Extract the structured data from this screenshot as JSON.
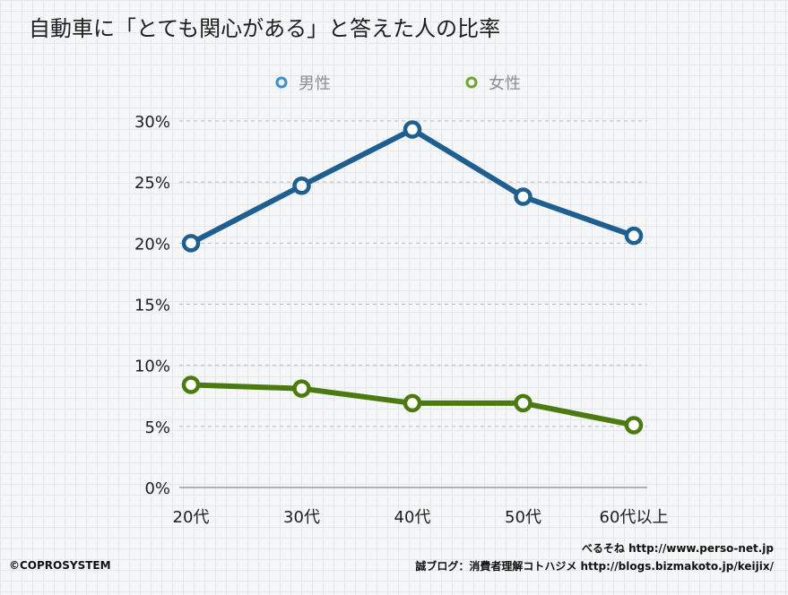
{
  "chart_data": {
    "type": "line",
    "title": "自動車に「とても関心がある」と答えた人の比率",
    "categories": [
      "20代",
      "30代",
      "40代",
      "50代",
      "60代以上"
    ],
    "series": [
      {
        "name": "男性",
        "color": "#1f5f8f",
        "values": [
          20.0,
          24.7,
          29.3,
          23.8,
          20.6
        ]
      },
      {
        "name": "女性",
        "color": "#4b7a10",
        "values": [
          8.4,
          8.1,
          6.9,
          6.9,
          5.1
        ]
      }
    ],
    "ylim": [
      0,
      30
    ],
    "yticks": [
      0,
      5,
      10,
      15,
      20,
      25,
      30
    ],
    "ytick_labels": [
      "0%",
      "5%",
      "10%",
      "15%",
      "20%",
      "25%",
      "30%"
    ],
    "grid": true,
    "legend_placement": "top"
  },
  "legend": {
    "male_icon_color": "#3d8fd0",
    "female_icon_color": "#6ea531"
  },
  "credits": {
    "left": "©COPROSYSTEM",
    "right_line1": "べるそね  http://www.perso-net.jp",
    "right_line2": "誠ブログ：消費者理解コトハジメ  http://blogs.bizmakoto.jp/keijix/"
  }
}
